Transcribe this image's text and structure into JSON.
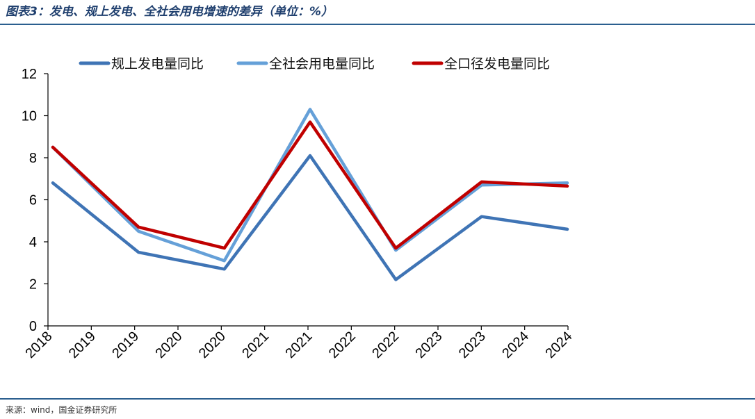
{
  "header": {
    "title": "图表3：发电、规上发电、全社会用电增速的差异（单位：%）"
  },
  "footer": {
    "source": "来源：wind，国金证券研究所"
  },
  "chart_data": {
    "type": "line",
    "title": "图表3：发电、规上发电、全社会用电增速的差异（单位：%）",
    "xlabel": "",
    "ylabel": "",
    "ylim": [
      0,
      12
    ],
    "yticks": [
      0,
      2,
      4,
      6,
      8,
      10,
      12
    ],
    "grid": false,
    "legend_position": "top",
    "x_tick_labels": [
      "2018",
      "2019",
      "2019",
      "2020",
      "2020",
      "2021",
      "2021",
      "2022",
      "2022",
      "2023",
      "2023",
      "2024",
      "2024"
    ],
    "categories": [
      "2018",
      "2019",
      "2020",
      "2021",
      "2022",
      "2023",
      "2024"
    ],
    "series": [
      {
        "name": "规上发电量同比",
        "color": "#3f74b5",
        "values": [
          6.8,
          3.5,
          2.7,
          8.1,
          2.2,
          5.2,
          4.6
        ]
      },
      {
        "name": "全社会用电量同比",
        "color": "#65a0d8",
        "values": [
          8.5,
          4.5,
          3.1,
          10.3,
          3.6,
          6.7,
          6.8
        ]
      },
      {
        "name": "全口径发电量同比",
        "color": "#c00000",
        "values": [
          8.5,
          4.7,
          3.7,
          9.7,
          3.7,
          6.85,
          6.65
        ]
      }
    ]
  }
}
